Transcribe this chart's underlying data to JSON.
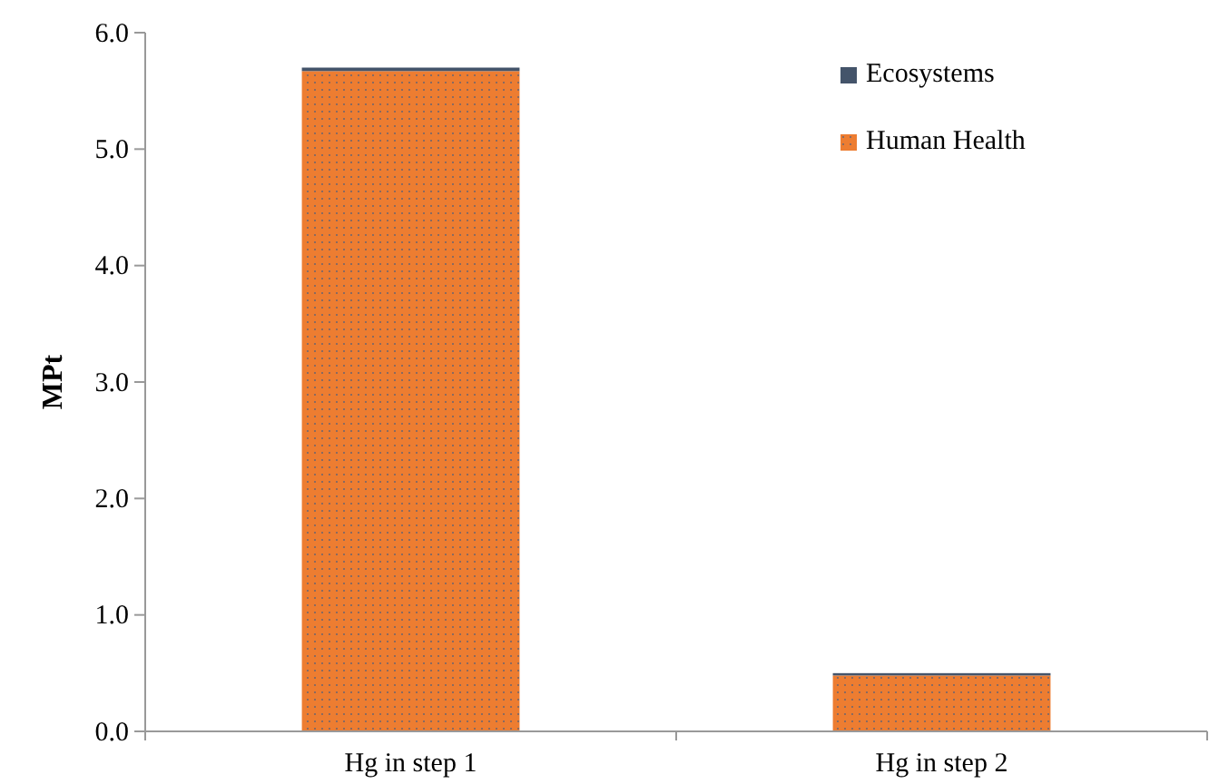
{
  "chart_data": {
    "type": "bar",
    "stacked": true,
    "ylabel": "MPt",
    "categories": [
      "Hg in step 1",
      "Hg in step 2"
    ],
    "series": [
      {
        "name": "Human Health",
        "color": "#ed7d31",
        "values": [
          5.67,
          0.48
        ]
      },
      {
        "name": "Ecosystems",
        "color": "#44546a",
        "values": [
          0.03,
          0.02
        ]
      }
    ],
    "ylim": [
      0,
      6
    ],
    "yticks": [
      {
        "value": 0,
        "label": "0.0"
      },
      {
        "value": 1,
        "label": "1.0"
      },
      {
        "value": 2,
        "label": "2.0"
      },
      {
        "value": 3,
        "label": "3.0"
      },
      {
        "value": 4,
        "label": "4.0"
      },
      {
        "value": 5,
        "label": "5.0"
      },
      {
        "value": 6,
        "label": "6.0"
      }
    ],
    "grid": false,
    "legend": "top right"
  }
}
